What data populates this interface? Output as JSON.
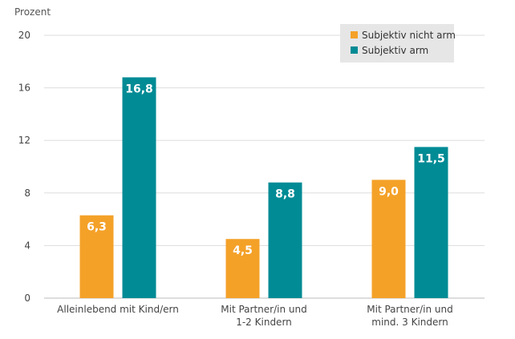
{
  "chart_data": {
    "type": "bar",
    "unit_label": "Prozent",
    "categories": [
      [
        "Alleinlebend mit Kind/ern"
      ],
      [
        "Mit Partner/in und",
        "1-2 Kindern"
      ],
      [
        "Mit Partner/in und",
        "mind. 3 Kindern"
      ]
    ],
    "series": [
      {
        "name": "Subjektiv nicht arm",
        "color": "#F4A128",
        "values": [
          6.3,
          4.5,
          9.0
        ],
        "labels": [
          "6,3",
          "4,5",
          "9,0"
        ]
      },
      {
        "name": "Subjektiv arm",
        "color": "#008B95",
        "values": [
          16.8,
          8.8,
          11.5
        ],
        "labels": [
          "16,8",
          "8,8",
          "11,5"
        ]
      }
    ],
    "ylim": [
      0,
      20
    ],
    "yticks": [
      0,
      4,
      8,
      12,
      16,
      20
    ],
    "grid": true,
    "legend": "top-right"
  }
}
